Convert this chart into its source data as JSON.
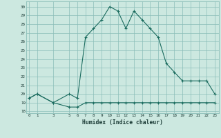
{
  "title": "",
  "xlabel": "Humidex (Indice chaleur)",
  "ylabel": "",
  "bg_color": "#cce8e0",
  "grid_color": "#8bbdb8",
  "line_color": "#1a6b5e",
  "marker_color": "#1a6b5e",
  "x_values": [
    0,
    1,
    3,
    5,
    6,
    7,
    8,
    9,
    10,
    11,
    12,
    13,
    14,
    15,
    16,
    17,
    18,
    19,
    20,
    21,
    22,
    23
  ],
  "y_main": [
    19.5,
    20.0,
    19.0,
    20.0,
    19.5,
    26.5,
    27.5,
    28.5,
    30.0,
    29.5,
    27.5,
    29.5,
    28.5,
    27.5,
    26.5,
    23.5,
    22.5,
    21.5,
    21.5,
    21.5,
    21.5,
    20.0
  ],
  "y_second": [
    19.5,
    20.0,
    19.0,
    18.5,
    18.5,
    19.0,
    19.0,
    19.0,
    19.0,
    19.0,
    19.0,
    19.0,
    19.0,
    19.0,
    19.0,
    19.0,
    19.0,
    19.0,
    19.0,
    19.0,
    19.0,
    19.0
  ],
  "xticks": [
    0,
    1,
    3,
    5,
    6,
    7,
    8,
    9,
    10,
    11,
    12,
    13,
    14,
    15,
    16,
    17,
    18,
    19,
    20,
    21,
    22,
    23
  ],
  "yticks": [
    18,
    19,
    20,
    21,
    22,
    23,
    24,
    25,
    26,
    27,
    28,
    29,
    30
  ],
  "xlim": [
    -0.3,
    23.5
  ],
  "ylim": [
    17.8,
    30.6
  ]
}
